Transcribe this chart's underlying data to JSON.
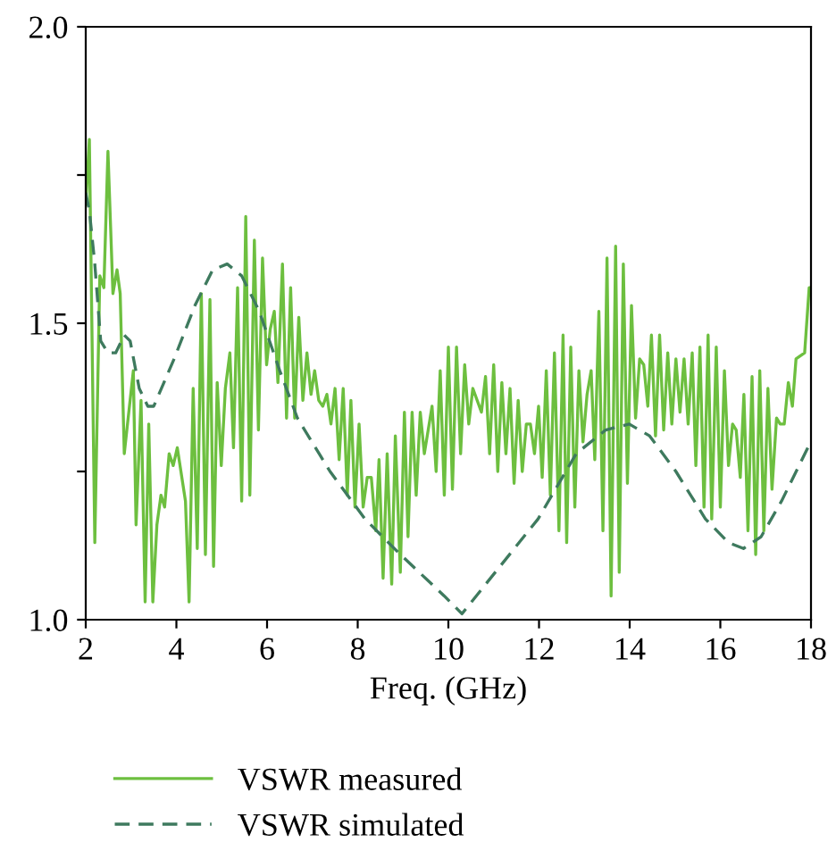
{
  "chart_data": {
    "type": "line",
    "xlabel": "Freq. (GHz)",
    "xlim": [
      2,
      18
    ],
    "xticks": [
      2,
      4,
      6,
      8,
      10,
      12,
      14,
      16,
      18
    ],
    "ylim": [
      1.0,
      2.0
    ],
    "yticks": [
      {
        "value": 1.0,
        "label": "1.0"
      },
      {
        "value": 1.25,
        "label": null
      },
      {
        "value": 1.5,
        "label": "1.5"
      },
      {
        "value": 1.75,
        "label": null
      },
      {
        "value": 2.0,
        "label": "2.0"
      }
    ],
    "grid": false,
    "legend": "bottom left",
    "marker": "none",
    "series": [
      {
        "name": "VSWR measured",
        "color": "#6dbf3f",
        "line_style": "solid",
        "x": [
          2.0,
          2.08,
          2.2,
          2.31,
          2.4,
          2.49,
          2.6,
          2.69,
          2.76,
          2.85,
          3.05,
          3.11,
          3.22,
          3.31,
          3.39,
          3.48,
          3.57,
          3.66,
          3.74,
          3.84,
          3.93,
          4.02,
          4.2,
          4.28,
          4.37,
          4.46,
          4.55,
          4.64,
          4.74,
          4.82,
          4.9,
          4.99,
          5.08,
          5.18,
          5.26,
          5.35,
          5.44,
          5.53,
          5.62,
          5.72,
          5.81,
          5.9,
          5.99,
          6.07,
          6.16,
          6.24,
          6.34,
          6.43,
          6.52,
          6.61,
          6.7,
          6.79,
          6.88,
          6.97,
          7.05,
          7.14,
          7.23,
          7.32,
          7.41,
          7.5,
          7.59,
          7.68,
          7.77,
          7.85,
          7.94,
          8.03,
          8.12,
          8.21,
          8.3,
          8.4,
          8.47,
          8.56,
          8.65,
          8.75,
          8.83,
          8.94,
          9.03,
          9.11,
          9.2,
          9.29,
          9.38,
          9.47,
          9.64,
          9.73,
          9.82,
          9.91,
          10.0,
          10.09,
          10.18,
          10.27,
          10.36,
          10.45,
          10.54,
          10.73,
          10.82,
          10.91,
          11.0,
          11.09,
          11.18,
          11.27,
          11.36,
          11.45,
          11.54,
          11.63,
          11.72,
          11.81,
          11.9,
          11.99,
          12.07,
          12.16,
          12.25,
          12.34,
          12.44,
          12.53,
          12.61,
          12.7,
          12.79,
          12.88,
          12.97,
          13.06,
          13.15,
          13.23,
          13.32,
          13.41,
          13.5,
          13.59,
          13.69,
          13.77,
          13.86,
          13.95,
          14.04,
          14.13,
          14.22,
          14.31,
          14.4,
          14.48,
          14.57,
          14.66,
          14.75,
          14.84,
          14.93,
          15.02,
          15.11,
          15.2,
          15.29,
          15.38,
          15.46,
          15.55,
          15.64,
          15.73,
          15.81,
          15.91,
          16.0,
          16.09,
          16.18,
          16.27,
          16.35,
          16.44,
          16.52,
          16.61,
          16.7,
          16.78,
          16.87,
          16.96,
          17.05,
          17.14,
          17.24,
          17.32,
          17.41,
          17.5,
          17.59,
          17.67,
          17.86,
          17.96,
          18.0
        ],
        "values": [
          1.7,
          1.81,
          1.13,
          1.58,
          1.56,
          1.79,
          1.55,
          1.59,
          1.55,
          1.28,
          1.42,
          1.16,
          1.37,
          1.03,
          1.33,
          1.03,
          1.16,
          1.21,
          1.19,
          1.28,
          1.26,
          1.29,
          1.2,
          1.03,
          1.39,
          1.12,
          1.55,
          1.11,
          1.54,
          1.09,
          1.4,
          1.26,
          1.39,
          1.45,
          1.29,
          1.56,
          1.2,
          1.68,
          1.21,
          1.64,
          1.32,
          1.61,
          1.43,
          1.49,
          1.52,
          1.4,
          1.6,
          1.34,
          1.56,
          1.34,
          1.51,
          1.37,
          1.45,
          1.38,
          1.42,
          1.37,
          1.36,
          1.38,
          1.33,
          1.39,
          1.27,
          1.39,
          1.21,
          1.37,
          1.19,
          1.33,
          1.19,
          1.24,
          1.24,
          1.15,
          1.27,
          1.07,
          1.28,
          1.06,
          1.31,
          1.08,
          1.35,
          1.14,
          1.35,
          1.21,
          1.35,
          1.28,
          1.36,
          1.25,
          1.42,
          1.21,
          1.46,
          1.22,
          1.46,
          1.28,
          1.43,
          1.33,
          1.39,
          1.35,
          1.41,
          1.28,
          1.43,
          1.25,
          1.4,
          1.28,
          1.39,
          1.23,
          1.37,
          1.25,
          1.33,
          1.33,
          1.28,
          1.36,
          1.24,
          1.42,
          1.21,
          1.45,
          1.15,
          1.48,
          1.13,
          1.46,
          1.19,
          1.42,
          1.3,
          1.38,
          1.42,
          1.27,
          1.52,
          1.15,
          1.61,
          1.04,
          1.63,
          1.08,
          1.6,
          1.23,
          1.53,
          1.34,
          1.44,
          1.43,
          1.36,
          1.48,
          1.31,
          1.48,
          1.32,
          1.45,
          1.33,
          1.44,
          1.35,
          1.44,
          1.33,
          1.45,
          1.26,
          1.46,
          1.19,
          1.48,
          1.17,
          1.46,
          1.19,
          1.42,
          1.26,
          1.33,
          1.32,
          1.24,
          1.38,
          1.15,
          1.41,
          1.11,
          1.42,
          1.15,
          1.39,
          1.22,
          1.34,
          1.33,
          1.33,
          1.4,
          1.36,
          1.44,
          1.45,
          1.56,
          1.56
        ]
      },
      {
        "name": "VSWR simulated",
        "color": "#3e7a5e",
        "line_style": "dashed",
        "x": [
          2.0,
          2.08,
          2.2,
          2.33,
          2.49,
          2.66,
          2.85,
          2.98,
          3.18,
          3.37,
          3.5,
          3.95,
          4.41,
          4.8,
          5.12,
          5.44,
          5.83,
          6.28,
          6.67,
          7.39,
          8.16,
          8.94,
          9.91,
          10.3,
          11.14,
          11.98,
          12.82,
          13.47,
          13.99,
          14.44,
          15.02,
          15.67,
          16.18,
          16.51,
          16.9,
          17.35,
          17.93,
          18.0
        ],
        "values": [
          1.72,
          1.69,
          1.6,
          1.47,
          1.45,
          1.45,
          1.48,
          1.47,
          1.39,
          1.36,
          1.36,
          1.44,
          1.53,
          1.59,
          1.6,
          1.58,
          1.52,
          1.42,
          1.34,
          1.25,
          1.17,
          1.11,
          1.04,
          1.01,
          1.09,
          1.17,
          1.28,
          1.32,
          1.33,
          1.31,
          1.25,
          1.17,
          1.13,
          1.12,
          1.14,
          1.2,
          1.29,
          1.3
        ]
      }
    ]
  }
}
